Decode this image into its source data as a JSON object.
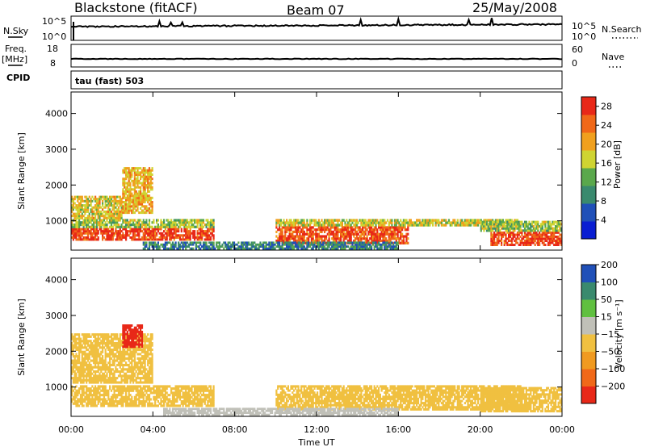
{
  "header": {
    "station": "Blackstone (fitACF)",
    "beam": "Beam 07",
    "date": "25/May/2008"
  },
  "strip1": {
    "left_label": "N.Sky",
    "right_label": "N.Search",
    "left_ticks": [
      "10^5",
      "10^0"
    ],
    "right_ticks": [
      "10^5",
      "10^0"
    ]
  },
  "strip2": {
    "left_label_1": "Freq.",
    "left_label_2": "[MHz]",
    "right_label": "Nave",
    "left_ticks": [
      "18",
      "8"
    ],
    "right_ticks": [
      "60",
      "0"
    ]
  },
  "cpid": {
    "label": "CPID",
    "value": "tau (fast) 503"
  },
  "x_axis": {
    "label": "Time UT",
    "ticks": [
      "00:00",
      "04:00",
      "08:00",
      "12:00",
      "16:00",
      "20:00",
      "00:00"
    ]
  },
  "colors": {
    "power_scale": [
      "#0a1ed2",
      "#2050b8",
      "#3a8a6e",
      "#5aa84c",
      "#cfd432",
      "#f0a01e",
      "#f06818",
      "#e82818"
    ],
    "velocity_scale": [
      "#e82818",
      "#f06818",
      "#f09a20",
      "#f0c040",
      "#c0c0b8",
      "#60c040",
      "#3a8a6e",
      "#2050b8"
    ]
  },
  "chart_data": [
    {
      "type": "heatmap",
      "title": "",
      "xlabel": "Time UT",
      "ylabel": "Slant Range [km]",
      "xlim": [
        0,
        24
      ],
      "ylim": [
        180,
        4600
      ],
      "y_ticks": [
        "1000",
        "2000",
        "3000",
        "4000"
      ],
      "y_tick_values": [
        1000,
        2000,
        3000,
        4000
      ],
      "colorbar": {
        "label": "Power [dB]",
        "ticks": [
          "4",
          "8",
          "12",
          "16",
          "20",
          "24",
          "28"
        ],
        "tick_values": [
          4,
          8,
          12,
          16,
          20,
          24,
          28
        ],
        "range": [
          0,
          30
        ]
      },
      "series": [
        {
          "t": [
            0,
            7.0
          ],
          "range": [
            450,
            800
          ],
          "value": 27
        },
        {
          "t": [
            0,
            7.0
          ],
          "range": [
            800,
            1050
          ],
          "value": 15
        },
        {
          "t": [
            0,
            2.5
          ],
          "range": [
            1050,
            1700
          ],
          "value": 18
        },
        {
          "t": [
            2.5,
            4.0
          ],
          "range": [
            1200,
            2500
          ],
          "value": 20
        },
        {
          "t": [
            10.0,
            16.5
          ],
          "range": [
            350,
            850
          ],
          "value": 26
        },
        {
          "t": [
            10.0,
            22.0
          ],
          "range": [
            850,
            1050
          ],
          "value": 17
        },
        {
          "t": [
            20.5,
            24.0
          ],
          "range": [
            300,
            700
          ],
          "value": 27
        },
        {
          "t": [
            20.0,
            24.0
          ],
          "range": [
            700,
            1000
          ],
          "value": 15
        },
        {
          "t": [
            3.5,
            16.0
          ],
          "range": [
            200,
            420
          ],
          "value": 9
        }
      ]
    },
    {
      "type": "heatmap",
      "title": "",
      "xlabel": "Time UT",
      "ylabel": "Slant Range [km]",
      "xlim": [
        0,
        24
      ],
      "ylim": [
        180,
        4600
      ],
      "y_ticks": [
        "1000",
        "2000",
        "3000",
        "4000"
      ],
      "y_tick_values": [
        1000,
        2000,
        3000,
        4000
      ],
      "colorbar": {
        "label": "Velocity [m s⁻¹]",
        "ticks": [
          "-200",
          "-100",
          "-50",
          "-15",
          "15",
          "50",
          "100",
          "200"
        ],
        "tick_values": [
          -200,
          -100,
          -50,
          -15,
          15,
          50,
          100,
          200
        ]
      },
      "series": [
        {
          "t": [
            0,
            7.0
          ],
          "range": [
            450,
            1050
          ],
          "value": 0
        },
        {
          "t": [
            0,
            4.0
          ],
          "range": [
            1100,
            2500
          ],
          "value": -10
        },
        {
          "t": [
            2.5,
            3.5
          ],
          "range": [
            2100,
            2750
          ],
          "value": -220
        },
        {
          "t": [
            10.0,
            22.0
          ],
          "range": [
            350,
            1050
          ],
          "value": 0
        },
        {
          "t": [
            20.0,
            24.0
          ],
          "range": [
            300,
            1000
          ],
          "value": 0
        },
        {
          "t": [
            4.5,
            16.0
          ],
          "range": [
            200,
            420
          ],
          "value": 40
        }
      ]
    }
  ]
}
